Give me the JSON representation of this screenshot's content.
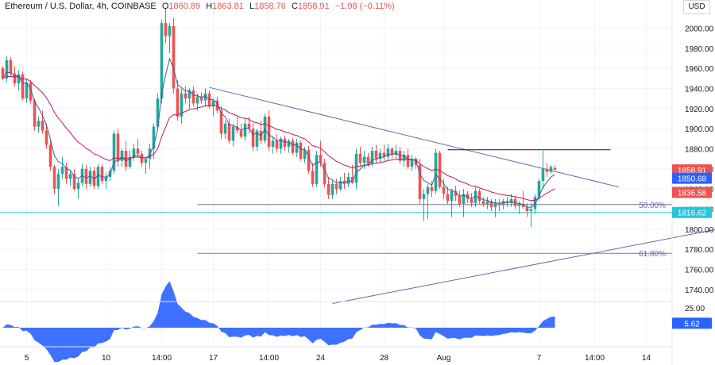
{
  "header": {
    "symbol": "Ethereum / U.S. Dollar, 4h, COINBASE",
    "o_label": "O",
    "o_value": "1860.89",
    "h_label": "H",
    "h_value": "1863.81",
    "l_label": "L",
    "l_value": "1858.76",
    "c_label": "C",
    "c_value": "1858.91",
    "change": "−1.98 (−0.11%)"
  },
  "currency": "USD",
  "colors": {
    "up": "#26a69a",
    "down": "#ef5350",
    "ema_fast": "#3f5aa6",
    "ema_slow": "#c2185b",
    "trendline": "#5b6fa8",
    "fib_line": "#787b86",
    "cyan": "#26c6da",
    "osc_fill": "#2962ff",
    "axis_text": "#131722",
    "grid": "#f0f3fa"
  },
  "chart_data": {
    "type": "candlestick",
    "price_axis": {
      "ylim": [
        1728,
        2028
      ],
      "ticks": [
        1740,
        1760,
        1780,
        1800,
        1820,
        1840,
        1860,
        1880,
        1900,
        1920,
        1940,
        1960,
        1980,
        2000
      ],
      "tick_labels": [
        "1740.00",
        "1760.00",
        "1780.00",
        "1800.00",
        "1820.00",
        "1840.00",
        "1860.00",
        "1880.00",
        "1900.00",
        "1920.00",
        "1940.00",
        "1960.00",
        "1980.00",
        "2000.00"
      ]
    },
    "time_axis": {
      "labels": [
        {
          "text": "5",
          "bar": 6
        },
        {
          "text": "10",
          "bar": 26
        },
        {
          "text": "14:00",
          "bar": 40
        },
        {
          "text": "17",
          "bar": 53
        },
        {
          "text": "14:00",
          "bar": 67
        },
        {
          "text": "24",
          "bar": 80
        },
        {
          "text": "28",
          "bar": 96
        },
        {
          "text": "Aug",
          "bar": 111
        },
        {
          "text": "7",
          "bar": 135
        },
        {
          "text": "14:00",
          "bar": 149
        },
        {
          "text": "14",
          "bar": 162
        }
      ]
    },
    "candles": [
      [
        1960,
        1962,
        1948,
        1950
      ],
      [
        1950,
        1972,
        1946,
        1968
      ],
      [
        1968,
        1971,
        1952,
        1955
      ],
      [
        1955,
        1962,
        1942,
        1945
      ],
      [
        1945,
        1958,
        1938,
        1954
      ],
      [
        1954,
        1957,
        1928,
        1930
      ],
      [
        1930,
        1950,
        1926,
        1946
      ],
      [
        1946,
        1948,
        1925,
        1928
      ],
      [
        1928,
        1930,
        1898,
        1902
      ],
      [
        1902,
        1912,
        1896,
        1908
      ],
      [
        1908,
        1918,
        1895,
        1898
      ],
      [
        1898,
        1905,
        1880,
        1884
      ],
      [
        1884,
        1888,
        1858,
        1862
      ],
      [
        1862,
        1864,
        1835,
        1840
      ],
      [
        1840,
        1860,
        1823,
        1855
      ],
      [
        1855,
        1872,
        1850,
        1862
      ],
      [
        1862,
        1866,
        1845,
        1850
      ],
      [
        1850,
        1858,
        1843,
        1855
      ],
      [
        1855,
        1860,
        1838,
        1840
      ],
      [
        1840,
        1850,
        1830,
        1846
      ],
      [
        1846,
        1865,
        1843,
        1860
      ],
      [
        1860,
        1864,
        1840,
        1845
      ],
      [
        1845,
        1862,
        1842,
        1858
      ],
      [
        1858,
        1862,
        1840,
        1843
      ],
      [
        1843,
        1865,
        1840,
        1862
      ],
      [
        1862,
        1865,
        1845,
        1848
      ],
      [
        1848,
        1856,
        1840,
        1852
      ],
      [
        1852,
        1862,
        1848,
        1858
      ],
      [
        1858,
        1898,
        1855,
        1895
      ],
      [
        1895,
        1900,
        1862,
        1868
      ],
      [
        1868,
        1880,
        1862,
        1878
      ],
      [
        1878,
        1888,
        1858,
        1862
      ],
      [
        1862,
        1878,
        1860,
        1872
      ],
      [
        1872,
        1885,
        1868,
        1880
      ],
      [
        1880,
        1890,
        1872,
        1875
      ],
      [
        1875,
        1878,
        1862,
        1866
      ],
      [
        1866,
        1872,
        1855,
        1870
      ],
      [
        1870,
        1885,
        1860,
        1880
      ],
      [
        1880,
        1905,
        1870,
        1902
      ],
      [
        1902,
        1935,
        1900,
        1930
      ],
      [
        1930,
        2008,
        1925,
        2005
      ],
      [
        2005,
        2020,
        1985,
        1992
      ],
      [
        1992,
        2005,
        1975,
        2002
      ],
      [
        2002,
        2010,
        1935,
        1940
      ],
      [
        1940,
        1948,
        1908,
        1912
      ],
      [
        1912,
        1940,
        1905,
        1935
      ],
      [
        1935,
        1942,
        1925,
        1930
      ],
      [
        1930,
        1940,
        1920,
        1938
      ],
      [
        1938,
        1942,
        1922,
        1925
      ],
      [
        1925,
        1935,
        1918,
        1932
      ],
      [
        1932,
        1936,
        1925,
        1928
      ],
      [
        1928,
        1940,
        1922,
        1935
      ],
      [
        1935,
        1938,
        1920,
        1922
      ],
      [
        1922,
        1930,
        1912,
        1928
      ],
      [
        1928,
        1932,
        1915,
        1918
      ],
      [
        1918,
        1922,
        1890,
        1895
      ],
      [
        1895,
        1908,
        1890,
        1905
      ],
      [
        1905,
        1910,
        1885,
        1888
      ],
      [
        1888,
        1905,
        1882,
        1902
      ],
      [
        1902,
        1912,
        1895,
        1898
      ],
      [
        1898,
        1905,
        1890,
        1892
      ],
      [
        1892,
        1910,
        1888,
        1905
      ],
      [
        1905,
        1912,
        1895,
        1900
      ],
      [
        1900,
        1905,
        1878,
        1882
      ],
      [
        1882,
        1900,
        1878,
        1898
      ],
      [
        1898,
        1908,
        1885,
        1888
      ],
      [
        1888,
        1915,
        1885,
        1912
      ],
      [
        1912,
        1918,
        1878,
        1882
      ],
      [
        1882,
        1892,
        1875,
        1888
      ],
      [
        1888,
        1895,
        1876,
        1880
      ],
      [
        1880,
        1892,
        1875,
        1890
      ],
      [
        1890,
        1893,
        1878,
        1882
      ],
      [
        1882,
        1890,
        1876,
        1888
      ],
      [
        1888,
        1891,
        1874,
        1876
      ],
      [
        1876,
        1890,
        1872,
        1886
      ],
      [
        1886,
        1888,
        1868,
        1870
      ],
      [
        1870,
        1882,
        1866,
        1879
      ],
      [
        1879,
        1883,
        1855,
        1858
      ],
      [
        1858,
        1866,
        1842,
        1845
      ],
      [
        1845,
        1878,
        1842,
        1874
      ],
      [
        1874,
        1888,
        1862,
        1866
      ],
      [
        1866,
        1870,
        1842,
        1845
      ],
      [
        1845,
        1852,
        1830,
        1834
      ],
      [
        1834,
        1848,
        1830,
        1845
      ],
      [
        1845,
        1850,
        1835,
        1840
      ],
      [
        1840,
        1852,
        1838,
        1848
      ],
      [
        1848,
        1856,
        1840,
        1845
      ],
      [
        1845,
        1856,
        1842,
        1852
      ],
      [
        1852,
        1864,
        1845,
        1846
      ],
      [
        1846,
        1880,
        1840,
        1875
      ],
      [
        1875,
        1882,
        1862,
        1866
      ],
      [
        1866,
        1878,
        1860,
        1872
      ],
      [
        1872,
        1876,
        1862,
        1865
      ],
      [
        1865,
        1882,
        1862,
        1878
      ],
      [
        1878,
        1884,
        1865,
        1870
      ],
      [
        1870,
        1880,
        1866,
        1876
      ],
      [
        1876,
        1884,
        1868,
        1872
      ],
      [
        1872,
        1885,
        1868,
        1880
      ],
      [
        1880,
        1882,
        1870,
        1874
      ],
      [
        1874,
        1884,
        1870,
        1878
      ],
      [
        1878,
        1882,
        1865,
        1868
      ],
      [
        1868,
        1878,
        1862,
        1874
      ],
      [
        1874,
        1880,
        1860,
        1862
      ],
      [
        1862,
        1874,
        1858,
        1870
      ],
      [
        1870,
        1872,
        1860,
        1864
      ],
      [
        1864,
        1870,
        1825,
        1830
      ],
      [
        1830,
        1840,
        1808,
        1835
      ],
      [
        1835,
        1845,
        1810,
        1842
      ],
      [
        1842,
        1848,
        1832,
        1838
      ],
      [
        1838,
        1880,
        1835,
        1876
      ],
      [
        1876,
        1878,
        1840,
        1842
      ],
      [
        1842,
        1850,
        1830,
        1835
      ],
      [
        1835,
        1842,
        1825,
        1828
      ],
      [
        1828,
        1840,
        1812,
        1838
      ],
      [
        1838,
        1843,
        1828,
        1833
      ],
      [
        1833,
        1838,
        1822,
        1825
      ],
      [
        1825,
        1840,
        1812,
        1835
      ],
      [
        1835,
        1838,
        1826,
        1830
      ],
      [
        1830,
        1836,
        1822,
        1826
      ],
      [
        1826,
        1842,
        1822,
        1838
      ],
      [
        1838,
        1840,
        1825,
        1828
      ],
      [
        1828,
        1832,
        1822,
        1825
      ],
      [
        1825,
        1832,
        1820,
        1828
      ],
      [
        1828,
        1830,
        1818,
        1822
      ],
      [
        1822,
        1830,
        1812,
        1826
      ],
      [
        1826,
        1830,
        1818,
        1824
      ],
      [
        1824,
        1830,
        1820,
        1828
      ],
      [
        1828,
        1832,
        1822,
        1826
      ],
      [
        1826,
        1835,
        1822,
        1830
      ],
      [
        1830,
        1833,
        1820,
        1823
      ],
      [
        1823,
        1828,
        1815,
        1825
      ],
      [
        1825,
        1838,
        1820,
        1822
      ],
      [
        1822,
        1826,
        1812,
        1818
      ],
      [
        1818,
        1826,
        1802,
        1820
      ],
      [
        1820,
        1835,
        1815,
        1832
      ],
      [
        1832,
        1850,
        1828,
        1848
      ],
      [
        1848,
        1878,
        1840,
        1860
      ],
      [
        1860,
        1866,
        1852,
        1857
      ],
      [
        1857,
        1863.81,
        1855,
        1862
      ],
      [
        1860.89,
        1863.81,
        1858.76,
        1858.91
      ]
    ],
    "ema_fast_last": 1850.68,
    "ema_slow_last": 1836.58,
    "trendlines": [
      {
        "name": "descending-resistance",
        "from": {
          "bar": 52,
          "price": 1941
        },
        "to": {
          "bar": 155,
          "price": 1842
        }
      },
      {
        "name": "ascending-support",
        "from": {
          "bar": 83,
          "price": 1726
        },
        "to": {
          "bar": 180,
          "price": 1800
        }
      }
    ],
    "horizontal_levels": [
      {
        "name": "resistance-high",
        "price": 1879,
        "from_bar": 112,
        "to_bar": 153
      },
      {
        "name": "fib-50",
        "price": 1824.5,
        "label": "50.00%",
        "from_bar": 49
      },
      {
        "name": "fib-618",
        "price": 1776,
        "label": "61.80%",
        "from_bar": 49
      },
      {
        "name": "cyan-level",
        "price": 1816.62
      }
    ],
    "price_labels": [
      {
        "name": "last-price",
        "text": "1858.91",
        "price": 1858.91,
        "color": "#ef5350"
      },
      {
        "name": "ema-fast",
        "text": "1850.68",
        "price": 1850.68,
        "color": "#2962ff"
      },
      {
        "name": "ema-slow",
        "text": "1836.58",
        "price": 1836.58,
        "color": "#ef5350"
      },
      {
        "name": "cyan-level",
        "text": "1816.62",
        "price": 1816.62,
        "color": "#26c6da"
      }
    ],
    "oscillator": {
      "ylim": [
        -24,
        32
      ],
      "tick_label": "25.00",
      "tick_value": 25,
      "last_label": "5.62",
      "last_value": 5.62
    }
  }
}
